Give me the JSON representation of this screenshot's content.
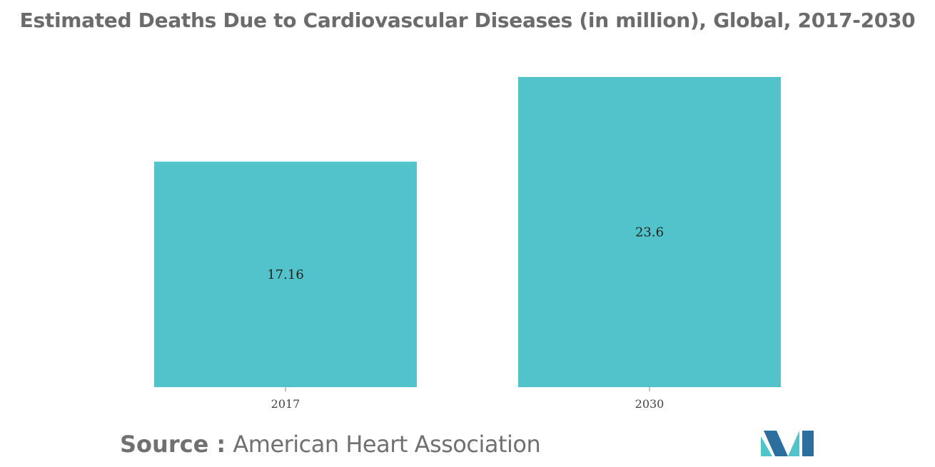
{
  "title": "Estimated Deaths Due to Cardiovascular Diseases (in million), Global, 2017-2030",
  "source": {
    "label": "Source :",
    "value": "American Heart Association"
  },
  "colors": {
    "bar": "#52C3CA",
    "logo_dark": "#2C6E9E",
    "logo_light": "#52C3CA"
  },
  "chart_data": {
    "type": "bar",
    "title": "Estimated Deaths Due to Cardiovascular Diseases (in million), Global, 2017-2030",
    "categories": [
      "2017",
      "2030"
    ],
    "values": [
      17.16,
      23.6
    ],
    "data_labels": [
      "17.16",
      "23.6"
    ],
    "xlabel": "",
    "ylabel": "",
    "ylim": [
      0,
      23.6
    ],
    "grid": false,
    "legend": "none"
  }
}
